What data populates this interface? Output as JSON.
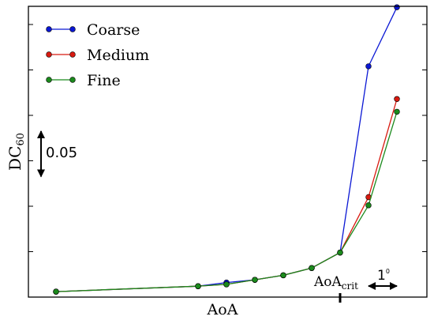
{
  "chart_data": {
    "type": "line",
    "ylabel": "DC",
    "ylabel_sub": "60",
    "xlabel": "AoA",
    "xlim": [
      0,
      12
    ],
    "ylim": [
      0,
      0.32
    ],
    "x": [
      0,
      5,
      6,
      7,
      8,
      9,
      10,
      11,
      12
    ],
    "series": [
      {
        "name": "Coarse",
        "color": "#0a17d4",
        "values": [
          0.006,
          0.012,
          0.016,
          0.019,
          0.024,
          0.032,
          0.049,
          0.254,
          0.319
        ]
      },
      {
        "name": "Medium",
        "color": "#d81a10",
        "values": [
          0.006,
          0.012,
          0.014,
          0.019,
          0.024,
          0.032,
          0.049,
          0.11,
          0.218
        ]
      },
      {
        "name": "Fine",
        "color": "#1b8a1c",
        "values": [
          0.006,
          0.012,
          0.014,
          0.019,
          0.024,
          0.032,
          0.049,
          0.101,
          0.204
        ]
      }
    ],
    "legend_position": "top-left",
    "grid": false,
    "scale_bar": {
      "label": "0.05",
      "value": 0.05
    },
    "crit_marker": {
      "label": "AoA",
      "label_sub": "crit",
      "x": 10,
      "step_label": "1",
      "step_degree": "0",
      "step_value": 1
    }
  }
}
